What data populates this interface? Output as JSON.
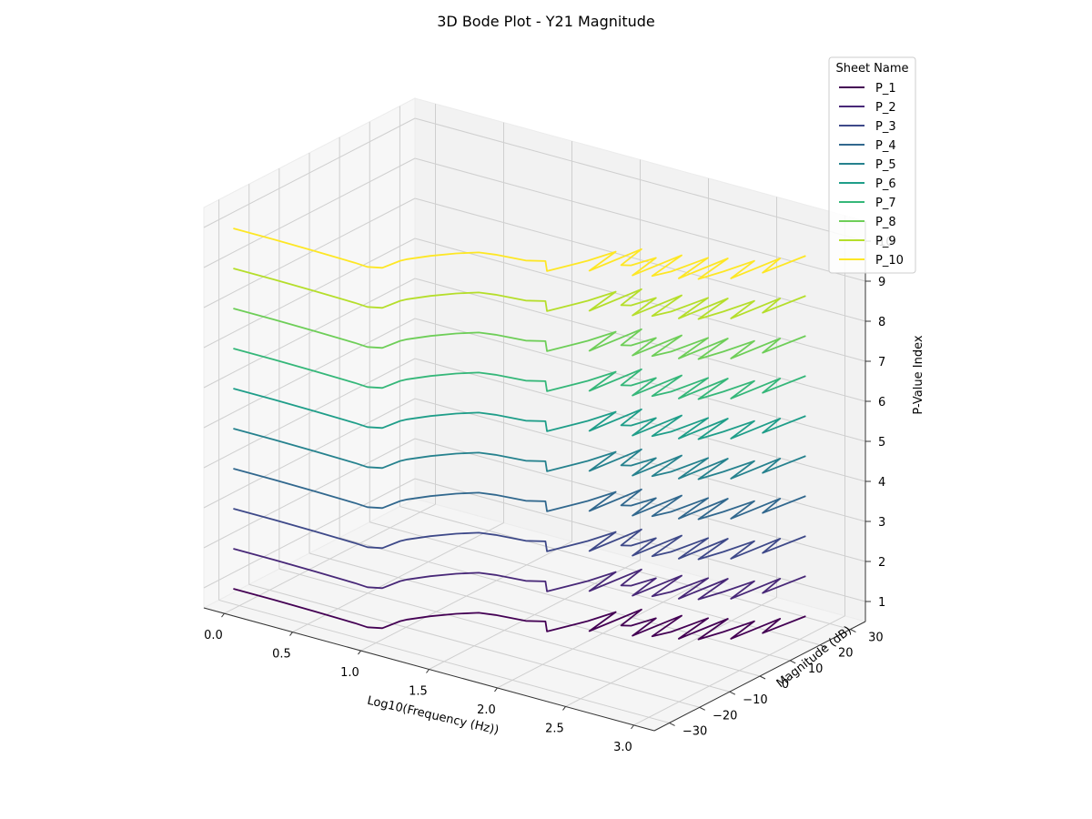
{
  "chart_data": {
    "type": "line",
    "projection": "3d",
    "title": "3D Bode Plot - Y21 Magnitude",
    "xlabel": "Log10(Frequency (Hz))",
    "ylabel": "Magnitude (dB)",
    "zlabel": "P-Value Index",
    "xlim": [
      -0.15,
      3.15
    ],
    "ylim": [
      -35,
      35
    ],
    "zlim": [
      0.5,
      10.5
    ],
    "x_ticks": [
      0.0,
      0.5,
      1.0,
      1.5,
      2.0,
      2.5,
      3.0
    ],
    "x_tick_labels": [
      "0.0",
      "0.5",
      "1.0",
      "1.5",
      "2.0",
      "2.5",
      "3.0"
    ],
    "y_ticks": [
      -30,
      -20,
      -10,
      0,
      10,
      20,
      30
    ],
    "y_tick_labels": [
      "−30",
      "−20",
      "−10",
      "0",
      "10",
      "20",
      "30"
    ],
    "z_ticks": [
      1,
      2,
      3,
      4,
      5,
      6,
      7,
      8,
      9,
      10
    ],
    "z_tick_labels": [
      "1",
      "2",
      "3",
      "4",
      "5",
      "6",
      "7",
      "8",
      "9",
      "10"
    ],
    "grid": true,
    "legend": {
      "title": "Sheet Name",
      "position": "top-right"
    },
    "colormap": "viridis",
    "series": [
      {
        "name": "P_1",
        "z": 1,
        "color": "#440154"
      },
      {
        "name": "P_2",
        "z": 2,
        "color": "#482878"
      },
      {
        "name": "P_3",
        "z": 3,
        "color": "#3e4989"
      },
      {
        "name": "P_4",
        "z": 4,
        "color": "#31688e"
      },
      {
        "name": "P_5",
        "z": 5,
        "color": "#26828e"
      },
      {
        "name": "P_6",
        "z": 6,
        "color": "#1f9e89"
      },
      {
        "name": "P_7",
        "z": 7,
        "color": "#35b779"
      },
      {
        "name": "P_8",
        "z": 8,
        "color": "#6ece58"
      },
      {
        "name": "P_9",
        "z": 9,
        "color": "#b5de2b"
      },
      {
        "name": "P_10",
        "z": 10,
        "color": "#fde725"
      }
    ],
    "curve": {
      "x": [
        0.0,
        0.3,
        0.6,
        0.9,
        1.0,
        1.08,
        1.1,
        1.12,
        1.2,
        1.3,
        1.4,
        1.5,
        1.6,
        1.7,
        1.8,
        1.9,
        2.0,
        2.05,
        2.1,
        2.15,
        2.2,
        2.25,
        2.3,
        2.35,
        2.4,
        2.45,
        2.5,
        2.55,
        2.6,
        2.65,
        2.7,
        2.75,
        2.8,
        2.85,
        2.9,
        2.95,
        3.0
      ],
      "magnitude_db": [
        -32.0,
        -32.0,
        -32.2,
        -32.5,
        -32.8,
        -31.5,
        -26.5,
        -25.0,
        -21.0,
        -17.0,
        -14.0,
        -13.0,
        -12.5,
        -12.0,
        -10.0,
        -14.0,
        -5.0,
        2.0,
        -9.0,
        6.0,
        -3.0,
        -2.0,
        4.0,
        -6.0,
        8.0,
        -4.0,
        0.0,
        10.0,
        -2.0,
        12.0,
        0.0,
        6.0,
        14.0,
        4.0,
        18.0,
        10.0,
        22.0
      ]
    }
  }
}
